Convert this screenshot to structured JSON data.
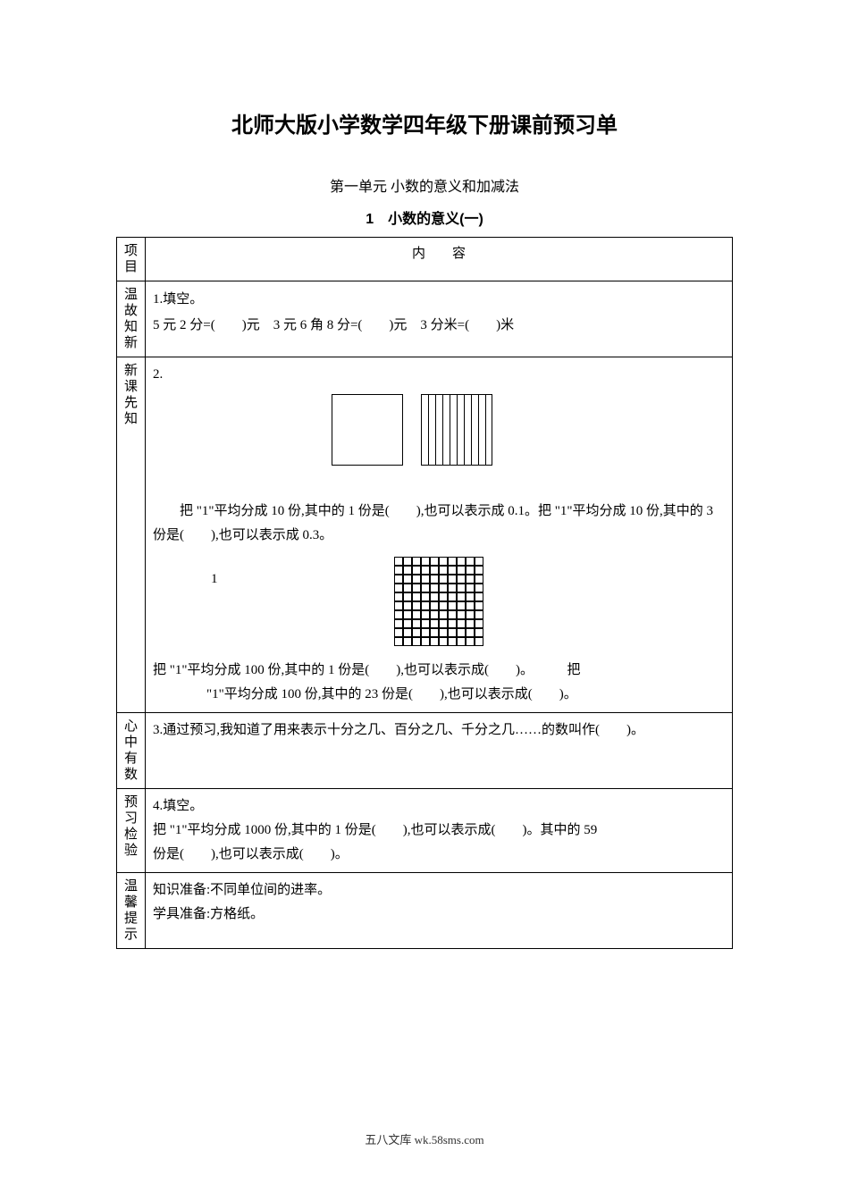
{
  "title": "北师大版小学数学四年级下册课前预习单",
  "subtitle1": "第一单元 小数的意义和加减法",
  "subtitle2": "1　小数的意义(一)",
  "header_col1": "项目",
  "header_col2": "内　　容",
  "rows": {
    "r1_label": "温故知新",
    "r1_q_title": "1.填空。",
    "r1_q_line": "5 元 2 分=(　　)元　3 元 6 角 8 分=(　　)元　3 分米=(　　)米",
    "r2_label": "新课先知",
    "r2_q_num": "2.",
    "r2_label_one": "1",
    "r2_p1": "　　把 \"1\"平均分成 10 份,其中的 1 份是(　　),也可以表示成 0.1。把 \"1\"平均分成 10 份,其中的 3 份是(　　),也可以表示成 0.3。",
    "r2_p2a": "把 \"1\"平均分成 100 份,其中的 1 份是(　　),也可以表示成(　　)。　　　把",
    "r2_p2b": "\"1\"平均分成 100 份,其中的 23 份是(　　),也可以表示成(　　)。",
    "r3_label": "心中有数",
    "r3_text": "3.通过预习,我知道了用来表示十分之几、百分之几、千分之几……的数叫作(　　)。",
    "r4_label": "预习检验",
    "r4_q_title": "4.填空。",
    "r4_line1": "把 \"1\"平均分成 1000 份,其中的 1 份是(　　),也可以表示成(　　)。其中的 59",
    "r4_line2": "份是(　　),也可以表示成(　　)。",
    "r5_label": "温馨提示",
    "r5_line1": "知识准备:不同单位间的进率。",
    "r5_line2": "学具准备:方格纸。"
  },
  "footer": "五八文库 wk.58sms.com",
  "colors": {
    "text": "#000000",
    "background": "#ffffff",
    "border": "#000000"
  },
  "fonts": {
    "title_size_pt": 18,
    "body_size_pt": 11
  },
  "figures": {
    "fig1": {
      "type": "infographic",
      "desc": "one square labeled 1 and one square split into 10 vertical strips",
      "strip_count": 10
    },
    "fig2": {
      "type": "infographic",
      "desc": "10x10 grid representing 100 parts",
      "rows": 10,
      "cols": 10
    }
  }
}
